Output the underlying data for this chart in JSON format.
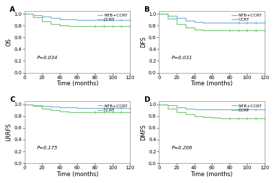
{
  "panels": [
    {
      "label": "A",
      "ylabel": "OS",
      "pvalue": "P=0.034",
      "blue_steps": [
        [
          0,
          1.0
        ],
        [
          10,
          0.98
        ],
        [
          20,
          0.95
        ],
        [
          30,
          0.93
        ],
        [
          40,
          0.91
        ],
        [
          50,
          0.91
        ],
        [
          60,
          0.9
        ],
        [
          70,
          0.9
        ],
        [
          80,
          0.89
        ],
        [
          90,
          0.89
        ],
        [
          100,
          0.89
        ],
        [
          110,
          0.89
        ],
        [
          120,
          0.89
        ]
      ],
      "green_steps": [
        [
          0,
          1.0
        ],
        [
          10,
          0.94
        ],
        [
          20,
          0.87
        ],
        [
          30,
          0.82
        ],
        [
          40,
          0.8
        ],
        [
          50,
          0.79
        ],
        [
          60,
          0.79
        ],
        [
          70,
          0.79
        ],
        [
          80,
          0.79
        ],
        [
          90,
          0.79
        ],
        [
          100,
          0.79
        ],
        [
          110,
          0.79
        ],
        [
          120,
          0.79
        ]
      ],
      "blue_censor": [
        90,
        100,
        110,
        120
      ],
      "green_censor": [
        80,
        90,
        100,
        110,
        120
      ]
    },
    {
      "label": "B",
      "ylabel": "DFS",
      "pvalue": "P=0.031",
      "blue_steps": [
        [
          0,
          1.0
        ],
        [
          10,
          0.97
        ],
        [
          20,
          0.93
        ],
        [
          30,
          0.88
        ],
        [
          40,
          0.86
        ],
        [
          50,
          0.85
        ],
        [
          60,
          0.85
        ],
        [
          70,
          0.85
        ],
        [
          80,
          0.85
        ],
        [
          90,
          0.85
        ],
        [
          100,
          0.85
        ],
        [
          110,
          0.85
        ],
        [
          120,
          0.85
        ]
      ],
      "green_steps": [
        [
          0,
          1.0
        ],
        [
          10,
          0.92
        ],
        [
          20,
          0.83
        ],
        [
          30,
          0.77
        ],
        [
          40,
          0.73
        ],
        [
          50,
          0.72
        ],
        [
          60,
          0.72
        ],
        [
          70,
          0.72
        ],
        [
          80,
          0.72
        ],
        [
          90,
          0.72
        ],
        [
          100,
          0.72
        ],
        [
          110,
          0.72
        ],
        [
          120,
          0.72
        ]
      ],
      "blue_censor": [
        90,
        100,
        110,
        120
      ],
      "green_censor": [
        80,
        90,
        100,
        110,
        120
      ]
    },
    {
      "label": "C",
      "ylabel": "LRRFS",
      "pvalue": "P=0.175",
      "blue_steps": [
        [
          0,
          1.0
        ],
        [
          10,
          0.99
        ],
        [
          20,
          0.97
        ],
        [
          30,
          0.96
        ],
        [
          40,
          0.95
        ],
        [
          50,
          0.95
        ],
        [
          60,
          0.94
        ],
        [
          70,
          0.94
        ],
        [
          80,
          0.94
        ],
        [
          90,
          0.94
        ],
        [
          100,
          0.94
        ],
        [
          110,
          0.94
        ],
        [
          120,
          0.94
        ]
      ],
      "green_steps": [
        [
          0,
          1.0
        ],
        [
          10,
          0.97
        ],
        [
          20,
          0.93
        ],
        [
          30,
          0.9
        ],
        [
          40,
          0.88
        ],
        [
          50,
          0.87
        ],
        [
          60,
          0.87
        ],
        [
          70,
          0.87
        ],
        [
          80,
          0.87
        ],
        [
          90,
          0.87
        ],
        [
          100,
          0.87
        ],
        [
          110,
          0.87
        ],
        [
          120,
          0.87
        ]
      ],
      "blue_censor": [
        90,
        100,
        110,
        120
      ],
      "green_censor": [
        80,
        90,
        100,
        110,
        120
      ]
    },
    {
      "label": "D",
      "ylabel": "DMFS",
      "pvalue": "P=0.206",
      "blue_steps": [
        [
          0,
          1.0
        ],
        [
          10,
          0.98
        ],
        [
          20,
          0.95
        ],
        [
          30,
          0.93
        ],
        [
          40,
          0.92
        ],
        [
          50,
          0.91
        ],
        [
          60,
          0.91
        ],
        [
          70,
          0.91
        ],
        [
          80,
          0.91
        ],
        [
          90,
          0.91
        ],
        [
          100,
          0.91
        ],
        [
          110,
          0.91
        ],
        [
          120,
          0.91
        ]
      ],
      "green_steps": [
        [
          0,
          1.0
        ],
        [
          10,
          0.93
        ],
        [
          20,
          0.87
        ],
        [
          30,
          0.83
        ],
        [
          40,
          0.8
        ],
        [
          50,
          0.78
        ],
        [
          60,
          0.77
        ],
        [
          70,
          0.76
        ],
        [
          80,
          0.76
        ],
        [
          90,
          0.76
        ],
        [
          100,
          0.76
        ],
        [
          110,
          0.76
        ],
        [
          120,
          0.76
        ]
      ],
      "blue_censor": [
        90,
        100,
        110,
        120
      ],
      "green_censor": [
        80,
        90,
        100,
        110,
        120
      ]
    }
  ],
  "blue_color": "#7ab4d8",
  "green_color": "#7dc87a",
  "blue_label": "NTB+CCRT",
  "green_label": "CCRT",
  "xlabel": "Time (months)",
  "xlim": [
    0,
    120
  ],
  "ylim": [
    0.0,
    1.05
  ],
  "yticks": [
    0.0,
    0.2,
    0.4,
    0.6,
    0.8,
    1.0
  ],
  "xticks": [
    0,
    20,
    40,
    60,
    80,
    100,
    120
  ],
  "bg_color": "#ffffff",
  "tick_fontsize": 5,
  "label_fontsize": 6,
  "pvalue_fontsize": 5,
  "legend_fontsize": 4.5,
  "linewidth": 0.9
}
